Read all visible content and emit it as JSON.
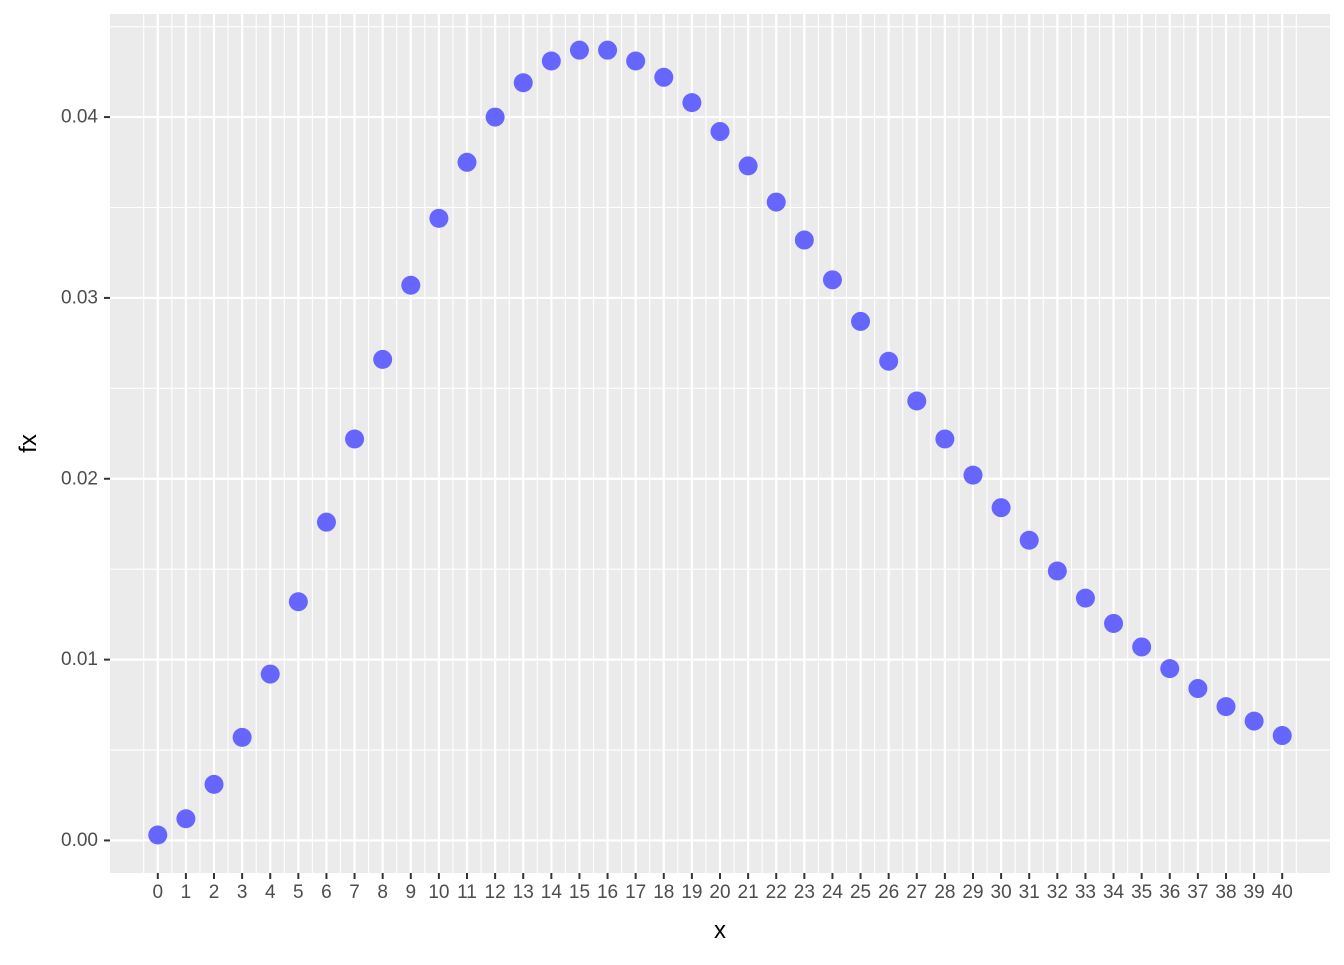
{
  "chart_data": {
    "type": "scatter",
    "title": "",
    "xlabel": "x",
    "ylabel": "fx",
    "x_ticks": [
      "0",
      "1",
      "2",
      "3",
      "4",
      "5",
      "6",
      "7",
      "8",
      "9",
      "10",
      "11",
      "12",
      "13",
      "14",
      "15",
      "16",
      "17",
      "18",
      "19",
      "20",
      "21",
      "22",
      "23",
      "24",
      "25",
      "26",
      "27",
      "28",
      "29",
      "30",
      "31",
      "32",
      "33",
      "34",
      "35",
      "36",
      "37",
      "38",
      "39",
      "40"
    ],
    "y_ticks": [
      "0.00",
      "0.01",
      "0.02",
      "0.03",
      "0.04"
    ],
    "y_tick_values": [
      0,
      0.01,
      0.02,
      0.03,
      0.04
    ],
    "xlim": [
      -1.7,
      41.7
    ],
    "ylim": [
      -0.0018,
      0.0457
    ],
    "grid": true,
    "point_color": "#6666ff",
    "panel_background": "#ebebeb",
    "grid_color": "#ffffff",
    "x": [
      0,
      1,
      2,
      3,
      4,
      5,
      6,
      7,
      8,
      9,
      10,
      11,
      12,
      13,
      14,
      15,
      16,
      17,
      18,
      19,
      20,
      21,
      22,
      23,
      24,
      25,
      26,
      27,
      28,
      29,
      30,
      31,
      32,
      33,
      34,
      35,
      36,
      37,
      38,
      39,
      40
    ],
    "y": [
      0.0003,
      0.0012,
      0.0031,
      0.0057,
      0.0092,
      0.0132,
      0.0176,
      0.0222,
      0.0266,
      0.0307,
      0.0344,
      0.0375,
      0.04,
      0.0419,
      0.0431,
      0.0437,
      0.0437,
      0.0431,
      0.0422,
      0.0408,
      0.0392,
      0.0373,
      0.0353,
      0.0332,
      0.031,
      0.0287,
      0.0265,
      0.0243,
      0.0222,
      0.0202,
      0.0184,
      0.0166,
      0.0149,
      0.0134,
      0.012,
      0.0107,
      0.0095,
      0.0084,
      0.0074,
      0.0066,
      0.0058
    ]
  }
}
